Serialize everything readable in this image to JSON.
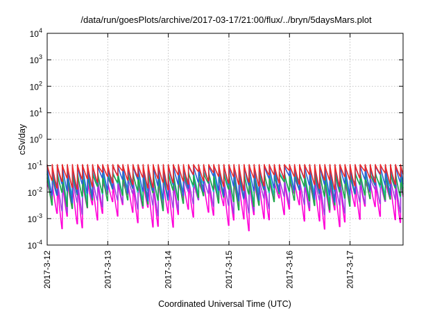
{
  "chart_data": {
    "type": "line",
    "title": "/data/run/goesPlots/archive/2017-03-17/21:00/flux/../bryn/5daysMars.plot",
    "xlabel": "Coordinated Universal Time (UTC)",
    "ylabel": "cSv/day",
    "y_scale": "log",
    "ylim": [
      0.0001,
      10000
    ],
    "xlim": [
      "2017-03-12 00:00",
      "2017-03-17 21:00"
    ],
    "x_ticks": [
      "2017-3-12",
      "2017-3-13",
      "2017-3-14",
      "2017-3-15",
      "2017-3-16",
      "2017-3-17"
    ],
    "y_ticks": [
      {
        "base": "10",
        "exp": "-4"
      },
      {
        "base": "10",
        "exp": "-3"
      },
      {
        "base": "10",
        "exp": "-2"
      },
      {
        "base": "10",
        "exp": "-1"
      },
      {
        "base": "10",
        "exp": "0"
      },
      {
        "base": "10",
        "exp": "1"
      },
      {
        "base": "10",
        "exp": "2"
      },
      {
        "base": "10",
        "exp": "3"
      },
      {
        "base": "10",
        "exp": "4"
      }
    ],
    "grid": true,
    "legend": "none",
    "cycle_period_hours": 2,
    "series": [
      {
        "color": "#e8292b",
        "peak": 0.11,
        "trough": 0.025
      },
      {
        "color": "#2a5fd8",
        "peak": 0.1,
        "trough": 0.012
      },
      {
        "color": "#1fa84a",
        "peak": 0.05,
        "trough": 0.006
      },
      {
        "color": "#19c9c9",
        "peak": 0.06,
        "trough": 0.01
      },
      {
        "color": "#a040e0",
        "peak": 0.035,
        "trough": 0.004
      },
      {
        "color": "#ff00d8",
        "peak": 0.025,
        "trough": 0.0015
      }
    ]
  }
}
